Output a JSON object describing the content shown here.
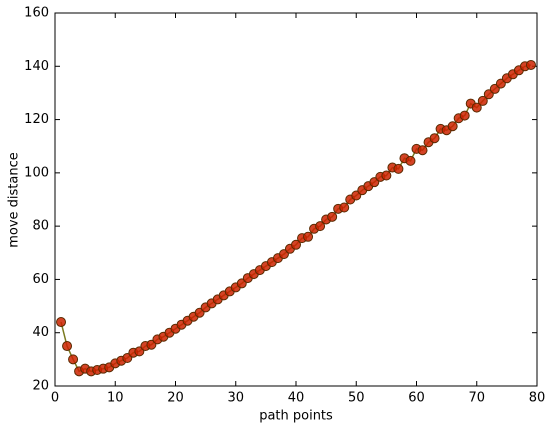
{
  "chart_data": {
    "type": "line",
    "x_label": "path points",
    "y_label": "move distance",
    "x": [
      1,
      2,
      3,
      4,
      5,
      6,
      7,
      8,
      9,
      10,
      11,
      12,
      13,
      14,
      15,
      16,
      17,
      18,
      19,
      20,
      21,
      22,
      23,
      24,
      25,
      26,
      27,
      28,
      29,
      30,
      31,
      32,
      33,
      34,
      35,
      36,
      37,
      38,
      39,
      40,
      41,
      42,
      43,
      44,
      45,
      46,
      47,
      48,
      49,
      50,
      51,
      52,
      53,
      54,
      55,
      56,
      57,
      58,
      59,
      60,
      61,
      62,
      63,
      64,
      65,
      66,
      67,
      68,
      69,
      70,
      71,
      72,
      73,
      74,
      75,
      76,
      77,
      78,
      79
    ],
    "series": [
      {
        "color": "#cc2200",
        "line_color": "#7a7a20",
        "values": [
          44,
          35,
          30,
          25.5,
          26.5,
          25.5,
          26,
          26.5,
          27,
          28.5,
          29.5,
          30.5,
          32.5,
          33,
          35,
          35.5,
          37.5,
          38.5,
          40,
          41.5,
          43,
          44.5,
          46,
          47.5,
          49.5,
          51,
          52.5,
          54,
          55.5,
          57,
          58.5,
          60.5,
          62,
          63.5,
          65,
          66.5,
          68,
          69.5,
          71.5,
          73,
          75.5,
          76,
          79,
          80,
          82.5,
          83.5,
          86.5,
          87,
          90,
          91.5,
          93.5,
          95,
          96.5,
          98.5,
          99,
          102,
          101.5,
          105.5,
          104.5,
          109,
          108.5,
          111.5,
          113,
          116.5,
          116,
          117.5,
          120.5,
          121.5,
          126,
          124.5,
          127,
          129.5,
          131.5,
          133.5,
          135.5,
          137,
          138.5,
          140,
          140.5
        ]
      }
    ],
    "xlim": [
      0,
      80
    ],
    "xticks": [
      0,
      10,
      20,
      30,
      40,
      50,
      60,
      70,
      80
    ],
    "ylim": [
      20,
      160
    ],
    "yticks": [
      20,
      40,
      60,
      80,
      100,
      120,
      140,
      160
    ]
  }
}
